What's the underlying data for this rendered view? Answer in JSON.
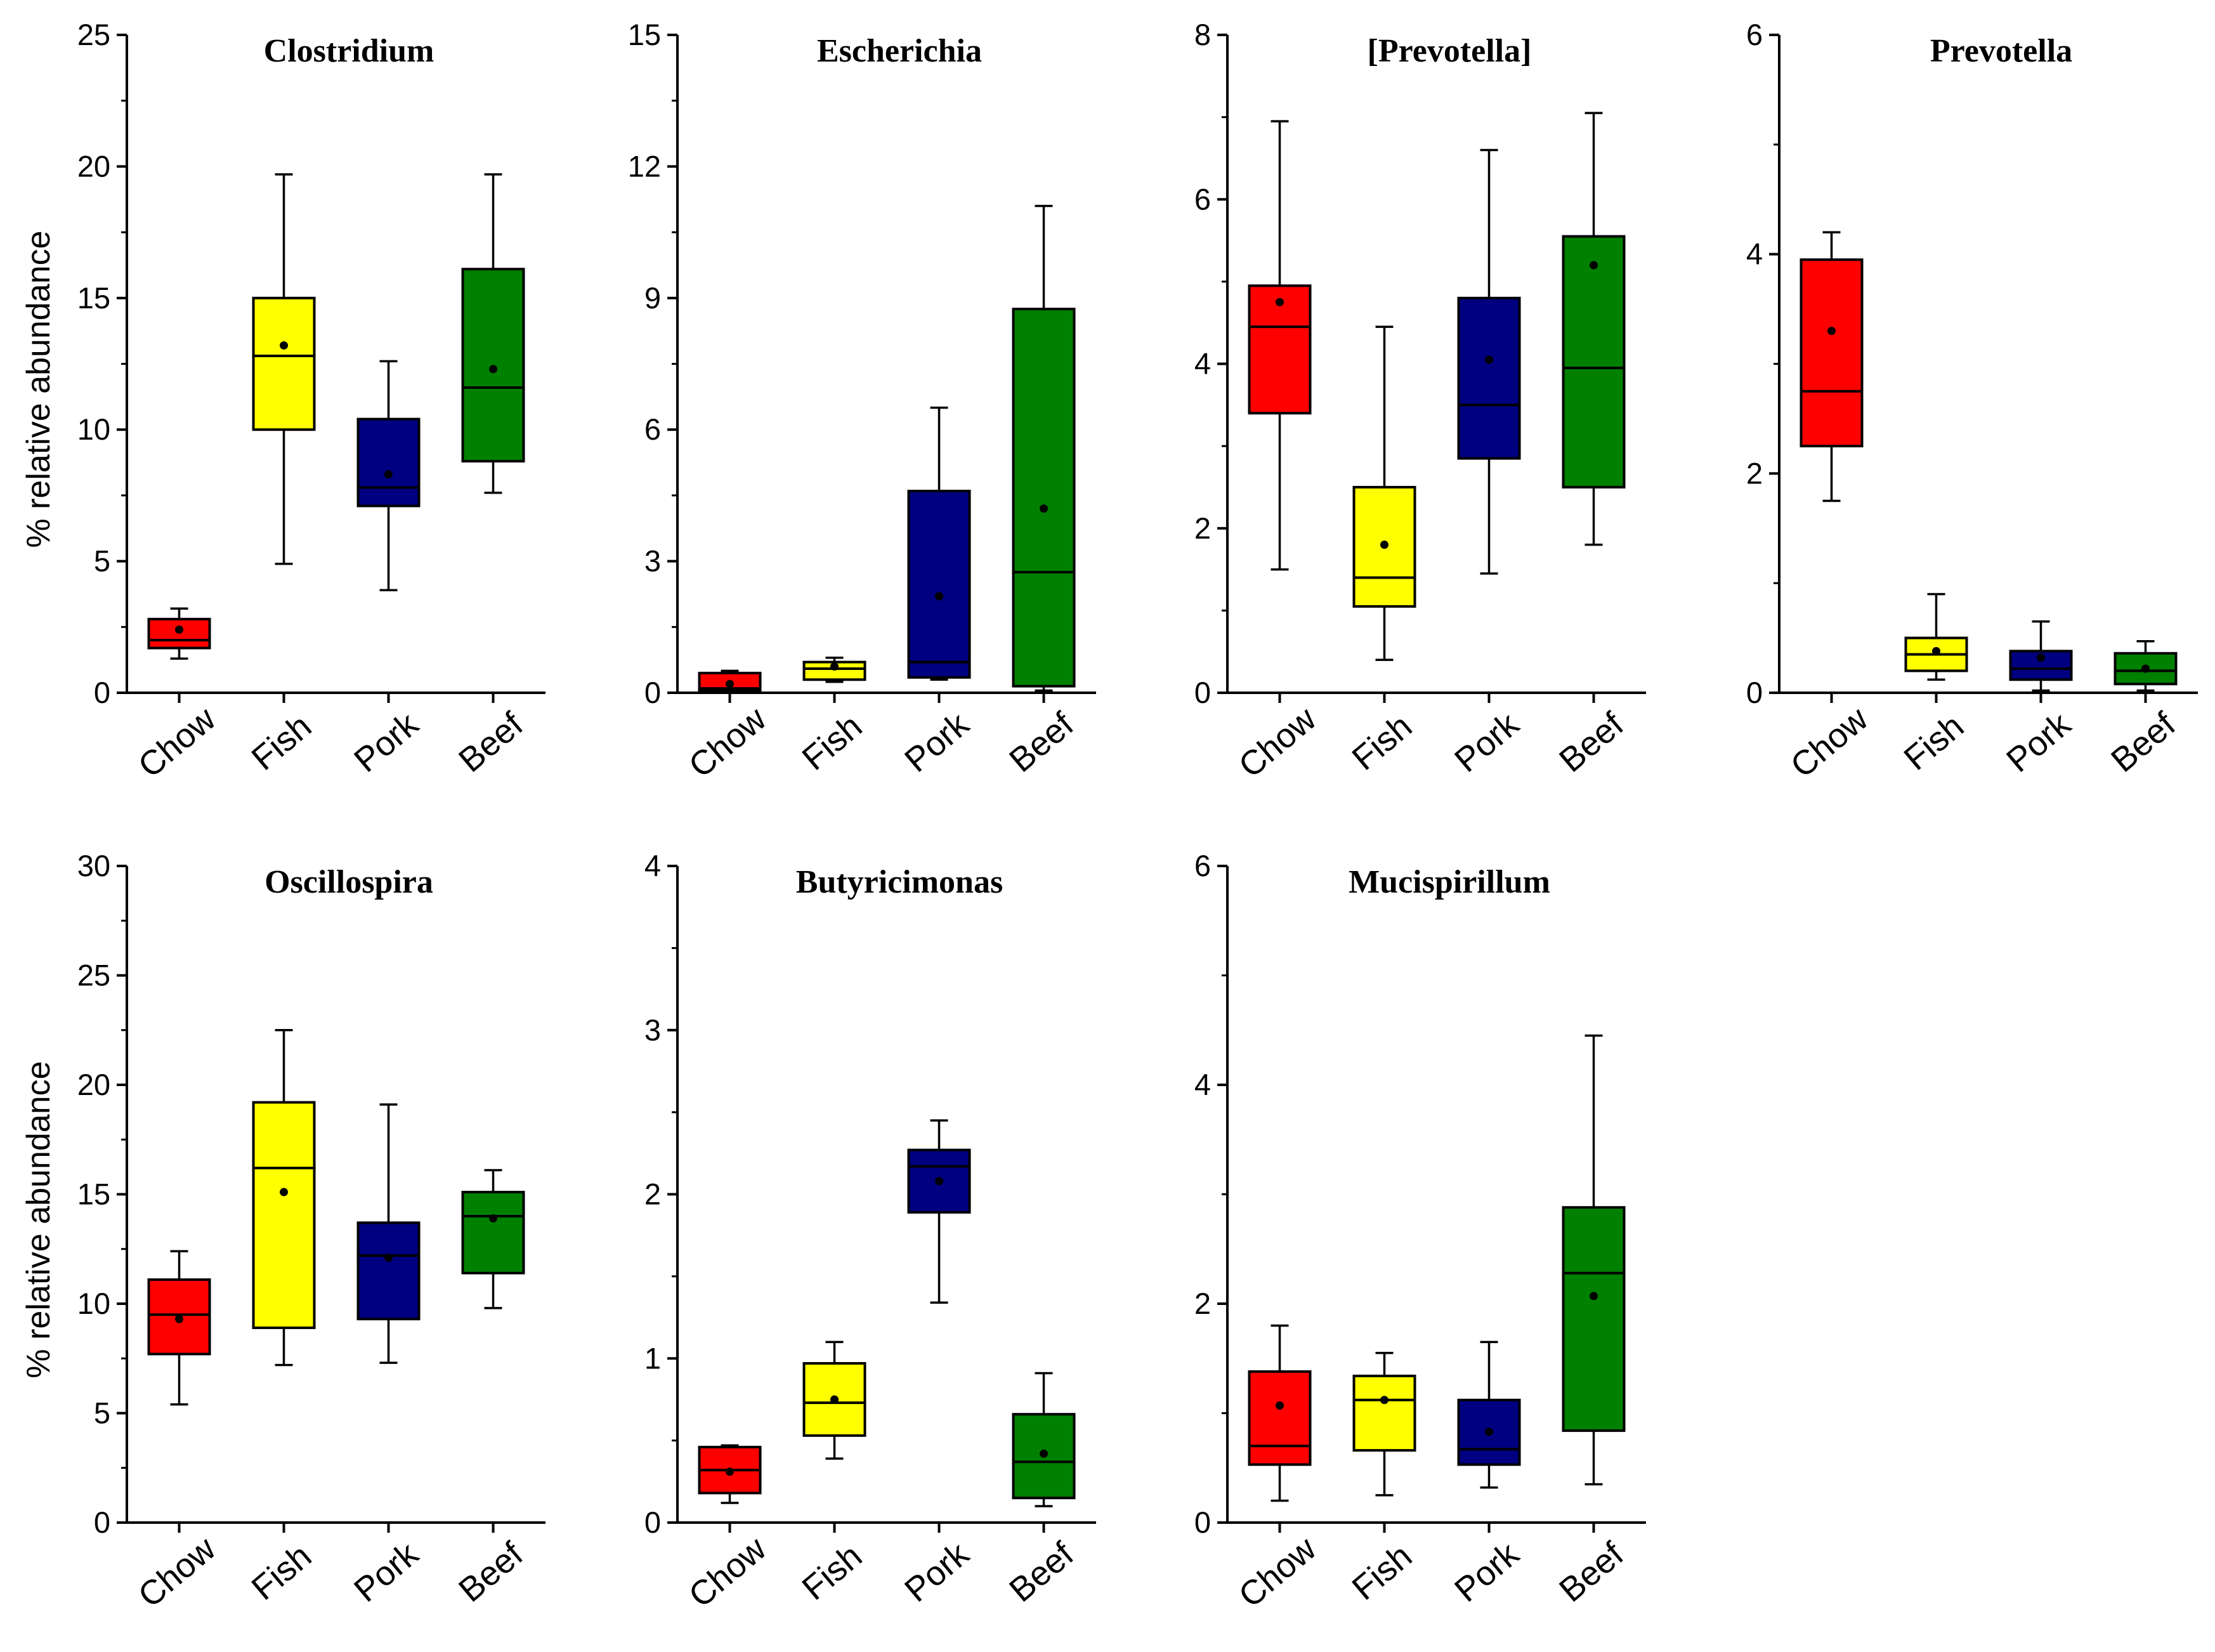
{
  "colors": {
    "Chow": "#ff0000",
    "Fish": "#ffff00",
    "Pork": "#000080",
    "Beef": "#008000"
  },
  "chart_data": [
    {
      "type": "boxplot",
      "title": "Clostridium",
      "ylabel": "% relative abundance",
      "ylim": [
        0,
        25
      ],
      "yticks": [
        "0",
        "5",
        "10",
        "15",
        "20",
        "25"
      ],
      "categories": [
        "Chow",
        "Fish",
        "Pork",
        "Beef"
      ],
      "boxes": [
        {
          "min": 1.3,
          "q1": 1.7,
          "median": 2.0,
          "q3": 2.8,
          "max": 3.2,
          "mean": 2.4
        },
        {
          "min": 4.9,
          "q1": 10.0,
          "median": 12.8,
          "q3": 15.0,
          "max": 19.7,
          "mean": 13.2
        },
        {
          "min": 3.9,
          "q1": 7.1,
          "median": 7.8,
          "q3": 10.4,
          "max": 12.6,
          "mean": 8.3
        },
        {
          "min": 7.6,
          "q1": 8.8,
          "median": 11.6,
          "q3": 16.1,
          "max": 19.7,
          "mean": 12.3
        }
      ]
    },
    {
      "type": "boxplot",
      "title": "Escherichia",
      "ylabel": "",
      "ylim": [
        0,
        15
      ],
      "yticks": [
        "0",
        "3",
        "6",
        "9",
        "12",
        "15"
      ],
      "categories": [
        "Chow",
        "Fish",
        "Pork",
        "Beef"
      ],
      "boxes": [
        {
          "min": 0.0,
          "q1": 0.05,
          "median": 0.1,
          "q3": 0.45,
          "max": 0.5,
          "mean": 0.2
        },
        {
          "min": 0.25,
          "q1": 0.3,
          "median": 0.55,
          "q3": 0.7,
          "max": 0.8,
          "mean": 0.6
        },
        {
          "min": 0.3,
          "q1": 0.35,
          "median": 0.7,
          "q3": 4.6,
          "max": 6.5,
          "mean": 2.2
        },
        {
          "min": 0.05,
          "q1": 0.15,
          "median": 2.75,
          "q3": 8.75,
          "max": 11.1,
          "mean": 4.2
        }
      ]
    },
    {
      "type": "boxplot",
      "title": "[Prevotella]",
      "ylabel": "",
      "ylim": [
        0,
        8
      ],
      "yticks": [
        "0",
        "2",
        "4",
        "6",
        "8"
      ],
      "categories": [
        "Chow",
        "Fish",
        "Pork",
        "Beef"
      ],
      "boxes": [
        {
          "min": 1.5,
          "q1": 3.4,
          "median": 4.45,
          "q3": 4.95,
          "max": 6.95,
          "mean": 4.75
        },
        {
          "min": 0.4,
          "q1": 1.05,
          "median": 1.4,
          "q3": 2.5,
          "max": 4.45,
          "mean": 1.8
        },
        {
          "min": 1.45,
          "q1": 2.85,
          "median": 3.5,
          "q3": 4.8,
          "max": 6.6,
          "mean": 4.05
        },
        {
          "min": 1.8,
          "q1": 2.5,
          "median": 3.95,
          "q3": 5.55,
          "max": 7.05,
          "mean": 5.2
        }
      ]
    },
    {
      "type": "boxplot",
      "title": "Prevotella",
      "ylabel": "",
      "ylim": [
        0,
        6
      ],
      "yticks": [
        "0",
        "2",
        "4",
        "6"
      ],
      "categories": [
        "Chow",
        "Fish",
        "Pork",
        "Beef"
      ],
      "boxes": [
        {
          "min": 1.75,
          "q1": 2.25,
          "median": 2.75,
          "q3": 3.95,
          "max": 4.2,
          "mean": 3.3
        },
        {
          "min": 0.12,
          "q1": 0.2,
          "median": 0.35,
          "q3": 0.5,
          "max": 0.9,
          "mean": 0.38
        },
        {
          "min": 0.02,
          "q1": 0.12,
          "median": 0.22,
          "q3": 0.38,
          "max": 0.65,
          "mean": 0.32
        },
        {
          "min": 0.02,
          "q1": 0.08,
          "median": 0.2,
          "q3": 0.36,
          "max": 0.47,
          "mean": 0.22
        }
      ]
    },
    {
      "type": "boxplot",
      "title": "Oscillospira",
      "ylabel": "% relative abundance",
      "ylim": [
        0,
        30
      ],
      "yticks": [
        "0",
        "5",
        "10",
        "15",
        "20",
        "25",
        "30"
      ],
      "categories": [
        "Chow",
        "Fish",
        "Pork",
        "Beef"
      ],
      "boxes": [
        {
          "min": 5.4,
          "q1": 7.7,
          "median": 9.5,
          "q3": 11.1,
          "max": 12.4,
          "mean": 9.3
        },
        {
          "min": 7.2,
          "q1": 8.9,
          "median": 16.2,
          "q3": 19.2,
          "max": 22.5,
          "mean": 15.1
        },
        {
          "min": 7.3,
          "q1": 9.3,
          "median": 12.2,
          "q3": 13.7,
          "max": 19.1,
          "mean": 12.1
        },
        {
          "min": 9.8,
          "q1": 11.4,
          "median": 14.0,
          "q3": 15.1,
          "max": 16.1,
          "mean": 13.9
        }
      ]
    },
    {
      "type": "boxplot",
      "title": "Butyricimonas",
      "ylabel": "",
      "ylim": [
        0,
        4
      ],
      "yticks": [
        "0",
        "1",
        "2",
        "3",
        "4"
      ],
      "categories": [
        "Chow",
        "Fish",
        "Pork",
        "Beef"
      ],
      "boxes": [
        {
          "min": 0.12,
          "q1": 0.18,
          "median": 0.32,
          "q3": 0.46,
          "max": 0.47,
          "mean": 0.31
        },
        {
          "min": 0.39,
          "q1": 0.53,
          "median": 0.73,
          "q3": 0.97,
          "max": 1.1,
          "mean": 0.75
        },
        {
          "min": 1.34,
          "q1": 1.89,
          "median": 2.17,
          "q3": 2.27,
          "max": 2.45,
          "mean": 2.08
        },
        {
          "min": 0.1,
          "q1": 0.15,
          "median": 0.37,
          "q3": 0.66,
          "max": 0.91,
          "mean": 0.42
        }
      ]
    },
    {
      "type": "boxplot",
      "title": "Mucispirillum",
      "ylabel": "",
      "ylim": [
        0,
        6
      ],
      "yticks": [
        "0",
        "2",
        "4",
        "6"
      ],
      "categories": [
        "Chow",
        "Fish",
        "Pork",
        "Beef"
      ],
      "boxes": [
        {
          "min": 0.2,
          "q1": 0.53,
          "median": 0.7,
          "q3": 1.38,
          "max": 1.8,
          "mean": 1.07
        },
        {
          "min": 0.25,
          "q1": 0.66,
          "median": 1.12,
          "q3": 1.34,
          "max": 1.55,
          "mean": 1.12
        },
        {
          "min": 0.32,
          "q1": 0.53,
          "median": 0.67,
          "q3": 1.12,
          "max": 1.65,
          "mean": 0.83
        },
        {
          "min": 0.35,
          "q1": 0.84,
          "median": 2.28,
          "q3": 2.88,
          "max": 4.45,
          "mean": 2.07
        }
      ]
    }
  ]
}
